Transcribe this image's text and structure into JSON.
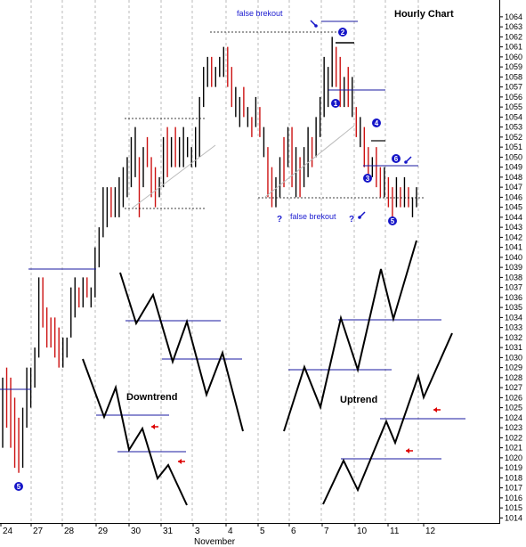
{
  "chart_data": {
    "type": "bar",
    "title": "Hourly Chart",
    "subtitle": "",
    "xlabel": "",
    "ylabel": "",
    "ylim": [
      1013.5,
      1065
    ],
    "y_ticks": [
      1014,
      1015,
      1016,
      1017,
      1018,
      1019,
      1020,
      1021,
      1022,
      1023,
      1024,
      1025,
      1026,
      1027,
      1028,
      1029,
      1030,
      1031,
      1032,
      1033,
      1034,
      1035,
      1036,
      1037,
      1038,
      1039,
      1040,
      1041,
      1042,
      1043,
      1044,
      1045,
      1046,
      1047,
      1048,
      1049,
      1050,
      1051,
      1052,
      1053,
      1054,
      1055,
      1056,
      1057,
      1058,
      1059,
      1060,
      1061,
      1062,
      1063,
      1064
    ],
    "x_ticks": [
      "24",
      "27",
      "28",
      "29",
      "30",
      "31",
      "3",
      "4",
      "5",
      "6",
      "7",
      "10",
      "11",
      "12"
    ],
    "month_label": "November",
    "grid": true,
    "bars": [
      {
        "high": 1028,
        "low": 1021,
        "color": "black"
      },
      {
        "high": 1029,
        "low": 1023,
        "color": "red"
      },
      {
        "high": 1028,
        "low": 1021,
        "color": "red"
      },
      {
        "high": 1026,
        "low": 1019,
        "color": "red"
      },
      {
        "high": 1024,
        "low": 1018.5,
        "color": "red"
      },
      {
        "high": 1025,
        "low": 1019,
        "color": "black"
      },
      {
        "high": 1029,
        "low": 1023,
        "color": "black"
      },
      {
        "high": 1029,
        "low": 1025,
        "color": "black"
      },
      {
        "high": 1031,
        "low": 1027,
        "color": "black"
      },
      {
        "high": 1038,
        "low": 1030,
        "color": "black"
      },
      {
        "high": 1038,
        "low": 1033,
        "color": "red"
      },
      {
        "high": 1035,
        "low": 1031,
        "color": "red"
      },
      {
        "high": 1034,
        "low": 1031,
        "color": "red"
      },
      {
        "high": 1034,
        "low": 1030,
        "color": "red"
      },
      {
        "high": 1033,
        "low": 1029,
        "color": "red"
      },
      {
        "high": 1032,
        "low": 1029,
        "color": "black"
      },
      {
        "high": 1032,
        "low": 1030,
        "color": "black"
      },
      {
        "high": 1037,
        "low": 1032,
        "color": "black"
      },
      {
        "high": 1038,
        "low": 1034,
        "color": "black"
      },
      {
        "high": 1037,
        "low": 1035,
        "color": "red"
      },
      {
        "high": 1038,
        "low": 1035,
        "color": "black"
      },
      {
        "high": 1038,
        "low": 1036,
        "color": "red"
      },
      {
        "high": 1037,
        "low": 1035,
        "color": "black"
      },
      {
        "high": 1041,
        "low": 1036,
        "color": "black"
      },
      {
        "high": 1043,
        "low": 1039,
        "color": "black"
      },
      {
        "high": 1047,
        "low": 1042,
        "color": "black"
      },
      {
        "high": 1047,
        "low": 1043,
        "color": "black"
      },
      {
        "high": 1047,
        "low": 1044,
        "color": "red"
      },
      {
        "high": 1047,
        "low": 1044,
        "color": "black"
      },
      {
        "high": 1048,
        "low": 1044,
        "color": "black"
      },
      {
        "high": 1049,
        "low": 1045,
        "color": "black"
      },
      {
        "high": 1050,
        "low": 1046,
        "color": "black"
      },
      {
        "high": 1052,
        "low": 1047,
        "color": "black"
      },
      {
        "high": 1053,
        "low": 1048,
        "color": "black"
      },
      {
        "high": 1050,
        "low": 1044,
        "color": "red"
      },
      {
        "high": 1051,
        "low": 1047,
        "color": "black"
      },
      {
        "high": 1052,
        "low": 1049,
        "color": "red"
      },
      {
        "high": 1050,
        "low": 1046,
        "color": "red"
      },
      {
        "high": 1049,
        "low": 1045,
        "color": "red"
      },
      {
        "high": 1048,
        "low": 1046,
        "color": "black"
      },
      {
        "high": 1052,
        "low": 1047,
        "color": "black"
      },
      {
        "high": 1053,
        "low": 1048,
        "color": "red"
      },
      {
        "high": 1052,
        "low": 1049,
        "color": "black"
      },
      {
        "high": 1053,
        "low": 1049,
        "color": "red"
      },
      {
        "high": 1052,
        "low": 1049,
        "color": "black"
      },
      {
        "high": 1053,
        "low": 1049,
        "color": "black"
      },
      {
        "high": 1052,
        "low": 1050,
        "color": "black"
      },
      {
        "high": 1051,
        "low": 1049,
        "color": "black"
      },
      {
        "high": 1053,
        "low": 1049,
        "color": "black"
      },
      {
        "high": 1056,
        "low": 1050,
        "color": "black"
      },
      {
        "high": 1059,
        "low": 1055,
        "color": "black"
      },
      {
        "high": 1060,
        "low": 1057,
        "color": "black"
      },
      {
        "high": 1060,
        "low": 1057,
        "color": "red"
      },
      {
        "high": 1059,
        "low": 1057,
        "color": "black"
      },
      {
        "high": 1060,
        "low": 1058,
        "color": "black"
      },
      {
        "high": 1061,
        "low": 1058,
        "color": "black"
      },
      {
        "high": 1061,
        "low": 1057,
        "color": "red"
      },
      {
        "high": 1059,
        "low": 1055,
        "color": "red"
      },
      {
        "high": 1057,
        "low": 1054,
        "color": "black"
      },
      {
        "high": 1056,
        "low": 1053,
        "color": "black"
      },
      {
        "high": 1057,
        "low": 1054,
        "color": "red"
      },
      {
        "high": 1055,
        "low": 1053,
        "color": "black"
      },
      {
        "high": 1054,
        "low": 1052,
        "color": "red"
      },
      {
        "high": 1056,
        "low": 1053,
        "color": "black"
      },
      {
        "high": 1055,
        "low": 1052,
        "color": "red"
      },
      {
        "high": 1053,
        "low": 1050,
        "color": "black"
      },
      {
        "high": 1051,
        "low": 1046,
        "color": "red"
      },
      {
        "high": 1049,
        "low": 1045,
        "color": "red"
      },
      {
        "high": 1048,
        "low": 1045,
        "color": "black"
      },
      {
        "high": 1050,
        "low": 1046,
        "color": "black"
      },
      {
        "high": 1052,
        "low": 1047,
        "color": "red"
      },
      {
        "high": 1053,
        "low": 1049,
        "color": "black"
      },
      {
        "high": 1053,
        "low": 1047,
        "color": "red"
      },
      {
        "high": 1051,
        "low": 1046,
        "color": "black"
      },
      {
        "high": 1050,
        "low": 1046,
        "color": "red"
      },
      {
        "high": 1051,
        "low": 1047,
        "color": "black"
      },
      {
        "high": 1053,
        "low": 1048,
        "color": "black"
      },
      {
        "high": 1052,
        "low": 1049,
        "color": "red"
      },
      {
        "high": 1054,
        "low": 1050,
        "color": "black"
      },
      {
        "high": 1056,
        "low": 1052,
        "color": "black"
      },
      {
        "high": 1060,
        "low": 1054,
        "color": "black"
      },
      {
        "high": 1059,
        "low": 1055,
        "color": "black"
      },
      {
        "high": 1062,
        "low": 1057,
        "color": "black"
      },
      {
        "high": 1061,
        "low": 1057,
        "color": "red"
      },
      {
        "high": 1060,
        "low": 1055,
        "color": "red"
      },
      {
        "high": 1058,
        "low": 1055,
        "color": "black"
      },
      {
        "high": 1059,
        "low": 1055,
        "color": "red"
      },
      {
        "high": 1058,
        "low": 1054,
        "color": "black"
      },
      {
        "high": 1055,
        "low": 1052,
        "color": "red"
      },
      {
        "high": 1054,
        "low": 1051,
        "color": "black"
      },
      {
        "high": 1053,
        "low": 1049,
        "color": "red"
      },
      {
        "high": 1051,
        "low": 1048,
        "color": "red"
      },
      {
        "high": 1050,
        "low": 1048,
        "color": "black"
      },
      {
        "high": 1051,
        "low": 1047,
        "color": "red"
      },
      {
        "high": 1049,
        "low": 1046,
        "color": "red"
      },
      {
        "high": 1049,
        "low": 1046,
        "color": "black"
      },
      {
        "high": 1048,
        "low": 1045,
        "color": "red"
      },
      {
        "high": 1047,
        "low": 1044,
        "color": "red"
      },
      {
        "high": 1048,
        "low": 1045,
        "color": "black"
      },
      {
        "high": 1047,
        "low": 1045,
        "color": "red"
      },
      {
        "high": 1048,
        "low": 1045,
        "color": "black"
      },
      {
        "high": 1047,
        "low": 1045,
        "color": "red"
      },
      {
        "high": 1046,
        "low": 1044,
        "color": "black"
      },
      {
        "high": 1047,
        "low": 1045,
        "color": "black"
      }
    ],
    "annotations": {
      "false_breakout_top": "false brekout",
      "false_breakout_bottom": "false brekout",
      "downtrend": "Downtrend",
      "uptrend": "Uptrend",
      "question_mark": "?",
      "wave_labels": [
        "1",
        "2",
        "3",
        "4",
        "5",
        "6",
        "5"
      ]
    },
    "colors": {
      "up_bar": "#000000",
      "down_bar": "#cc1111",
      "level_line": "#1a1aa0",
      "marker": "#1515c8",
      "arrow_red": "#dd0000"
    }
  }
}
